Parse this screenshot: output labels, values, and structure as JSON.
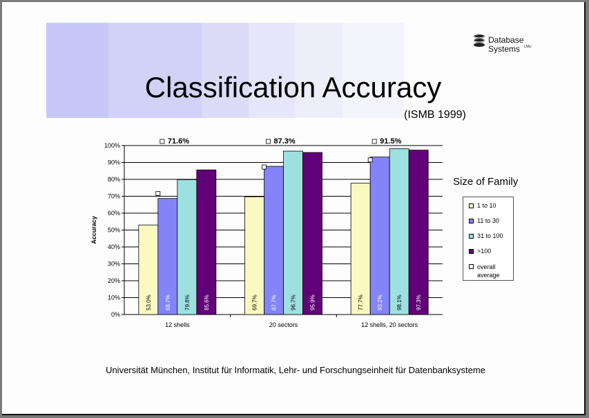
{
  "slide": {
    "title": "Classification Accuracy",
    "subtitle": "(ISMB 1999)",
    "footer": "Universität München, Institut für Informatik, Lehr- und Forschungseinheit für Datenbanksysteme",
    "logo": {
      "line1": "Database",
      "line2": "Systems",
      "tm": "LMU"
    },
    "banner_colors": [
      "#c8c8f8",
      "#d2d2f8",
      "#dcdcf8",
      "#e6e6fa",
      "#eeeefb",
      "#f4f4fc"
    ]
  },
  "legend": {
    "title": "Size of Family",
    "items": [
      {
        "label": "1 to 10",
        "color": "#fafac0"
      },
      {
        "label": "11 to 30",
        "color": "#8484f8"
      },
      {
        "label": "31 to 100",
        "color": "#9ee0e0"
      },
      {
        "label": ">100",
        "color": "#620078"
      },
      {
        "label": "overall average",
        "color": "#ffffff"
      }
    ]
  },
  "chart_data": {
    "type": "bar",
    "categories": [
      "12 shells",
      "20 sectors",
      "12 shells, 20 sectors"
    ],
    "ylabel": "Accuracy",
    "ylim": [
      0,
      100
    ],
    "yticks": [
      "0%",
      "10%",
      "20%",
      "30%",
      "40%",
      "50%",
      "60%",
      "70%",
      "80%",
      "90%",
      "100%"
    ],
    "series": [
      {
        "name": "1 to 10",
        "color": "#fafac0",
        "values": [
          53.0,
          69.7,
          77.7
        ],
        "labels": [
          "53.0%",
          "69.7%",
          "77.7%"
        ],
        "label_color": "#000000"
      },
      {
        "name": "11 to 30",
        "color": "#8484f8",
        "values": [
          68.7,
          87.7,
          93.2
        ],
        "labels": [
          "68.7%",
          "87.7%",
          "93.2%"
        ],
        "label_color": "#ffffff"
      },
      {
        "name": "31 to 100",
        "color": "#9ee0e0",
        "values": [
          79.8,
          96.7,
          98.1
        ],
        "labels": [
          "79.8%",
          "96.7%",
          "98.1%"
        ],
        "label_color": "#000000"
      },
      {
        "name": ">100",
        "color": "#620078",
        "values": [
          85.6,
          95.9,
          97.3
        ],
        "labels": [
          "85.6%",
          "95.9%",
          "97.3%"
        ],
        "label_color": "#ffffff"
      }
    ],
    "overall_average": {
      "name": "overall average",
      "values": [
        71.6,
        87.3,
        91.5
      ],
      "labels": [
        "71.6%",
        "87.3%",
        "91.5%"
      ]
    },
    "grid": true,
    "legend_position": "right"
  }
}
